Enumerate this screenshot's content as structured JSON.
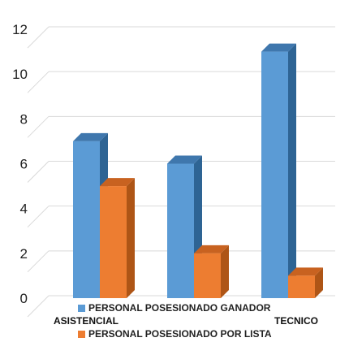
{
  "chart_data": {
    "type": "bar",
    "categories": [
      "ASISTENCIAL",
      "TECNICO",
      ""
    ],
    "series": [
      {
        "name": "PERSONAL POSESIONADO GANADOR",
        "values": [
          7,
          6,
          11
        ],
        "color": "#5B9BD5"
      },
      {
        "name": "PERSONAL POSESIONADO POR LISTA",
        "values": [
          5,
          2,
          1
        ],
        "color": "#ED7D31"
      }
    ],
    "y_ticks": [
      "0",
      "2",
      "4",
      "6",
      "8",
      "10",
      "12"
    ],
    "ylim": [
      0,
      12
    ],
    "grid": true,
    "legend_position": "bottom"
  }
}
